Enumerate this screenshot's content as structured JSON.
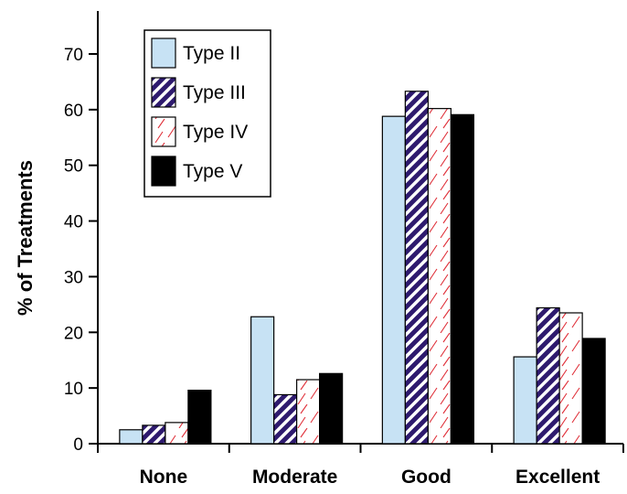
{
  "chart_data": {
    "type": "bar",
    "categories": [
      "None",
      "Moderate",
      "Good",
      "Excellent"
    ],
    "series": [
      {
        "name": "Type II",
        "values": [
          2.5,
          22.8,
          58.8,
          15.6
        ],
        "color": "#c7e2f4",
        "fill_style": "solid"
      },
      {
        "name": "Type III",
        "values": [
          3.3,
          8.8,
          63.3,
          24.4
        ],
        "color": "#2e1a6e",
        "fill_style": "diagonal-stripes"
      },
      {
        "name": "Type IV",
        "values": [
          3.8,
          11.5,
          60.2,
          23.5
        ],
        "color": "#e0303a",
        "fill_style": "sparse-hatch"
      },
      {
        "name": "Type V",
        "values": [
          9.6,
          12.6,
          59.1,
          18.9
        ],
        "color": "#000000",
        "fill_style": "solid"
      }
    ],
    "title": "",
    "xlabel": "",
    "ylabel": "% of Treatments",
    "ylim": [
      0,
      75
    ],
    "yticks": [
      0,
      10,
      20,
      30,
      40,
      50,
      60,
      70
    ],
    "grid": false,
    "legend_position": "top-left"
  }
}
